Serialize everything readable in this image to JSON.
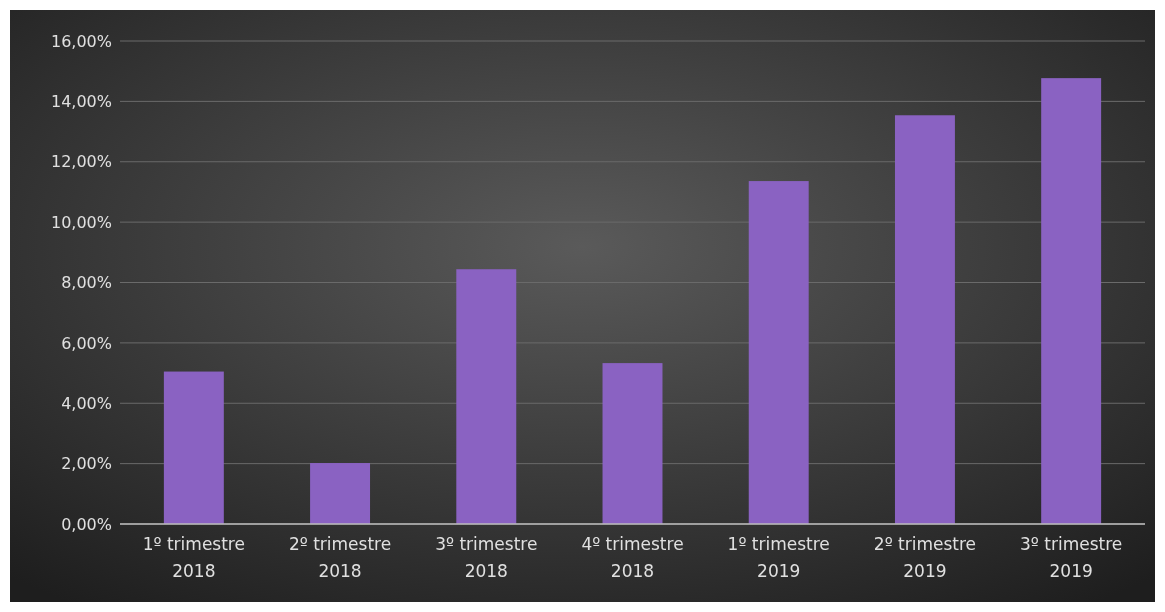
{
  "chart_data": {
    "type": "bar",
    "categories": [
      "1º trimestre 2018",
      "2º trimestre 2018",
      "3º trimestre 2018",
      "4º trimestre 2018",
      "1º trimestre 2019",
      "2º trimestre 2019",
      "3º trimestre 2019"
    ],
    "values": [
      5.05,
      2.02,
      8.44,
      5.33,
      11.36,
      13.54,
      14.77
    ],
    "color": "#8a62c2",
    "ylim": [
      0,
      16
    ],
    "yticks": [
      {
        "value": 0,
        "label": "0,00%"
      },
      {
        "value": 2,
        "label": "2,00%"
      },
      {
        "value": 4,
        "label": "4,00%"
      },
      {
        "value": 6,
        "label": "6,00%"
      },
      {
        "value": 8,
        "label": "8,00%"
      },
      {
        "value": 10,
        "label": "10,00%"
      },
      {
        "value": 12,
        "label": "12,00%"
      },
      {
        "value": 14,
        "label": "14,00%"
      },
      {
        "value": 16,
        "label": "16,00%"
      }
    ],
    "grid": "y"
  }
}
